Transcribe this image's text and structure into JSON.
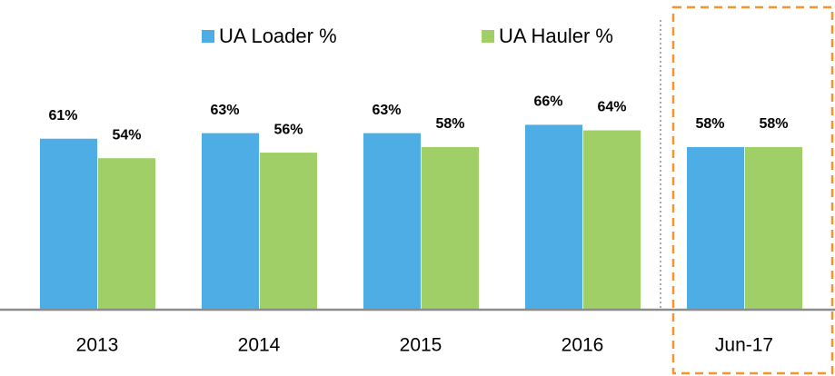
{
  "chart_data": {
    "type": "bar",
    "categories": [
      "2013",
      "2014",
      "2015",
      "2016",
      "Jun-17"
    ],
    "series": [
      {
        "name": "UA Loader %",
        "color": "#4fade6",
        "values": [
          61,
          63,
          63,
          66,
          58
        ],
        "value_labels": [
          "61%",
          "63%",
          "63%",
          "66%",
          "58%"
        ]
      },
      {
        "name": "UA Hauler %",
        "color": "#a0cf67",
        "values": [
          54,
          56,
          58,
          64,
          58
        ],
        "value_labels": [
          "54%",
          "56%",
          "58%",
          "64%",
          "58%"
        ]
      }
    ],
    "ylim": [
      0,
      100
    ],
    "legend": "top"
  }
}
